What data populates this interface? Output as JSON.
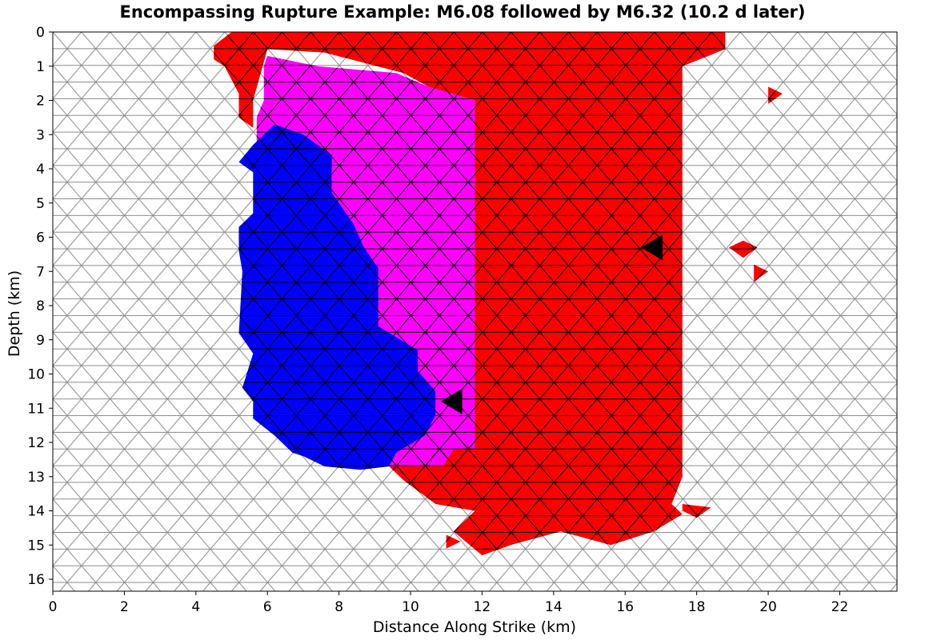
{
  "chart_data": {
    "type": "heatmap",
    "title": "Encompassing Rupture Example: M6.08 followed by M6.32 (10.2 d later)",
    "xlabel": "Distance Along Strike (km)",
    "ylabel": "Depth (km)",
    "xlim": [
      0,
      23.6
    ],
    "ylim": [
      0,
      16.35
    ],
    "y_inverted": true,
    "x_ticks": [
      0,
      2,
      4,
      6,
      8,
      10,
      12,
      14,
      16,
      18,
      20,
      22
    ],
    "y_ticks": [
      0,
      1,
      2,
      3,
      4,
      5,
      6,
      7,
      8,
      9,
      10,
      11,
      12,
      13,
      14,
      15,
      16
    ],
    "mesh": "triangular fault elements, side ~0.8 km",
    "colors": {
      "background_element": "#ffffff",
      "mesh_line": "#8c8c8c",
      "later_rupture": "#ff0000",
      "overlap_both": "#ff00ff",
      "earlier_rupture": "#0000ff",
      "hypocenter_marker": "#000000"
    },
    "series": [
      {
        "color": "#ff0000",
        "regions": [
          [
            [
              5.0,
              0
            ],
            [
              18.8,
              0
            ],
            [
              18.8,
              0.5
            ],
            [
              17.6,
              1.0
            ],
            [
              17.6,
              13.0
            ],
            [
              17.3,
              13.8
            ],
            [
              17.6,
              14.1
            ],
            [
              16.8,
              14.6
            ],
            [
              15.6,
              15.0
            ],
            [
              14.2,
              14.6
            ],
            [
              12.8,
              15.0
            ],
            [
              12.0,
              15.3
            ],
            [
              11.2,
              14.6
            ],
            [
              11.8,
              14.0
            ],
            [
              10.7,
              13.8
            ],
            [
              9.8,
              13.1
            ],
            [
              9.4,
              12.7
            ],
            [
              10.5,
              12.3
            ],
            [
              11.2,
              12.2
            ],
            [
              11.8,
              11.8
            ],
            [
              11.8,
              2.0
            ],
            [
              10.5,
              1.6
            ],
            [
              9.8,
              1.2
            ],
            [
              7.6,
              0.6
            ],
            [
              6.0,
              0.5
            ],
            [
              5.6,
              2.0
            ],
            [
              5.6,
              2.8
            ],
            [
              5.2,
              2.5
            ],
            [
              5.2,
              1.8
            ],
            [
              4.8,
              1.0
            ],
            [
              4.5,
              0.8
            ],
            [
              4.5,
              0.4
            ]
          ],
          [
            [
              17.6,
              13.8
            ],
            [
              18.4,
              13.9
            ],
            [
              18.0,
              14.2
            ],
            [
              17.6,
              14.0
            ]
          ],
          [
            [
              20.0,
              1.6
            ],
            [
              20.4,
              1.8
            ],
            [
              20.0,
              2.1
            ]
          ],
          [
            [
              18.9,
              6.3
            ],
            [
              19.3,
              6.1
            ],
            [
              19.7,
              6.3
            ],
            [
              19.3,
              6.6
            ]
          ],
          [
            [
              19.6,
              6.8
            ],
            [
              20.0,
              7.0
            ],
            [
              19.6,
              7.3
            ]
          ],
          [
            [
              11.0,
              14.7
            ],
            [
              11.4,
              14.9
            ],
            [
              11.0,
              15.1
            ]
          ]
        ]
      },
      {
        "color": "#ff00ff",
        "regions": [
          [
            [
              6.0,
              0.7
            ],
            [
              7.4,
              1.0
            ],
            [
              9.6,
              1.2
            ],
            [
              10.5,
              1.6
            ],
            [
              11.8,
              2.0
            ],
            [
              11.8,
              12.2
            ],
            [
              11.2,
              12.2
            ],
            [
              10.9,
              12.7
            ],
            [
              9.4,
              12.7
            ],
            [
              9.6,
              12.3
            ],
            [
              10.4,
              11.8
            ],
            [
              10.7,
              11.2
            ],
            [
              10.7,
              10.5
            ],
            [
              10.2,
              9.9
            ],
            [
              10.2,
              9.3
            ],
            [
              9.1,
              8.6
            ],
            [
              9.1,
              6.9
            ],
            [
              8.7,
              6.3
            ],
            [
              8.4,
              5.6
            ],
            [
              7.8,
              4.7
            ],
            [
              7.8,
              3.9
            ],
            [
              6.4,
              3.6
            ],
            [
              5.7,
              3.3
            ],
            [
              5.7,
              2.5
            ],
            [
              5.9,
              2.0
            ],
            [
              5.9,
              1.0
            ]
          ]
        ]
      },
      {
        "color": "#0000ff",
        "regions": [
          [
            [
              6.2,
              2.7
            ],
            [
              7.0,
              3.0
            ],
            [
              7.8,
              3.6
            ],
            [
              7.8,
              4.7
            ],
            [
              8.4,
              5.6
            ],
            [
              8.7,
              6.3
            ],
            [
              9.1,
              6.9
            ],
            [
              9.1,
              8.6
            ],
            [
              10.2,
              9.3
            ],
            [
              10.2,
              9.9
            ],
            [
              10.7,
              10.5
            ],
            [
              10.7,
              11.2
            ],
            [
              10.4,
              11.8
            ],
            [
              9.6,
              12.3
            ],
            [
              9.4,
              12.7
            ],
            [
              8.6,
              12.8
            ],
            [
              7.6,
              12.7
            ],
            [
              7.0,
              12.4
            ],
            [
              6.7,
              12.3
            ],
            [
              6.2,
              11.8
            ],
            [
              5.6,
              11.3
            ],
            [
              5.6,
              10.8
            ],
            [
              5.3,
              10.4
            ],
            [
              5.6,
              9.4
            ],
            [
              5.2,
              8.8
            ],
            [
              5.3,
              7.0
            ],
            [
              5.2,
              6.4
            ],
            [
              5.2,
              5.7
            ],
            [
              5.6,
              5.3
            ],
            [
              5.6,
              4.1
            ],
            [
              5.2,
              3.8
            ],
            [
              5.6,
              3.3
            ]
          ]
        ]
      }
    ],
    "markers": [
      {
        "label": "hypocenter",
        "x": 16.8,
        "y": 6.3
      },
      {
        "label": "hypocenter",
        "x": 11.2,
        "y": 10.8
      }
    ]
  }
}
